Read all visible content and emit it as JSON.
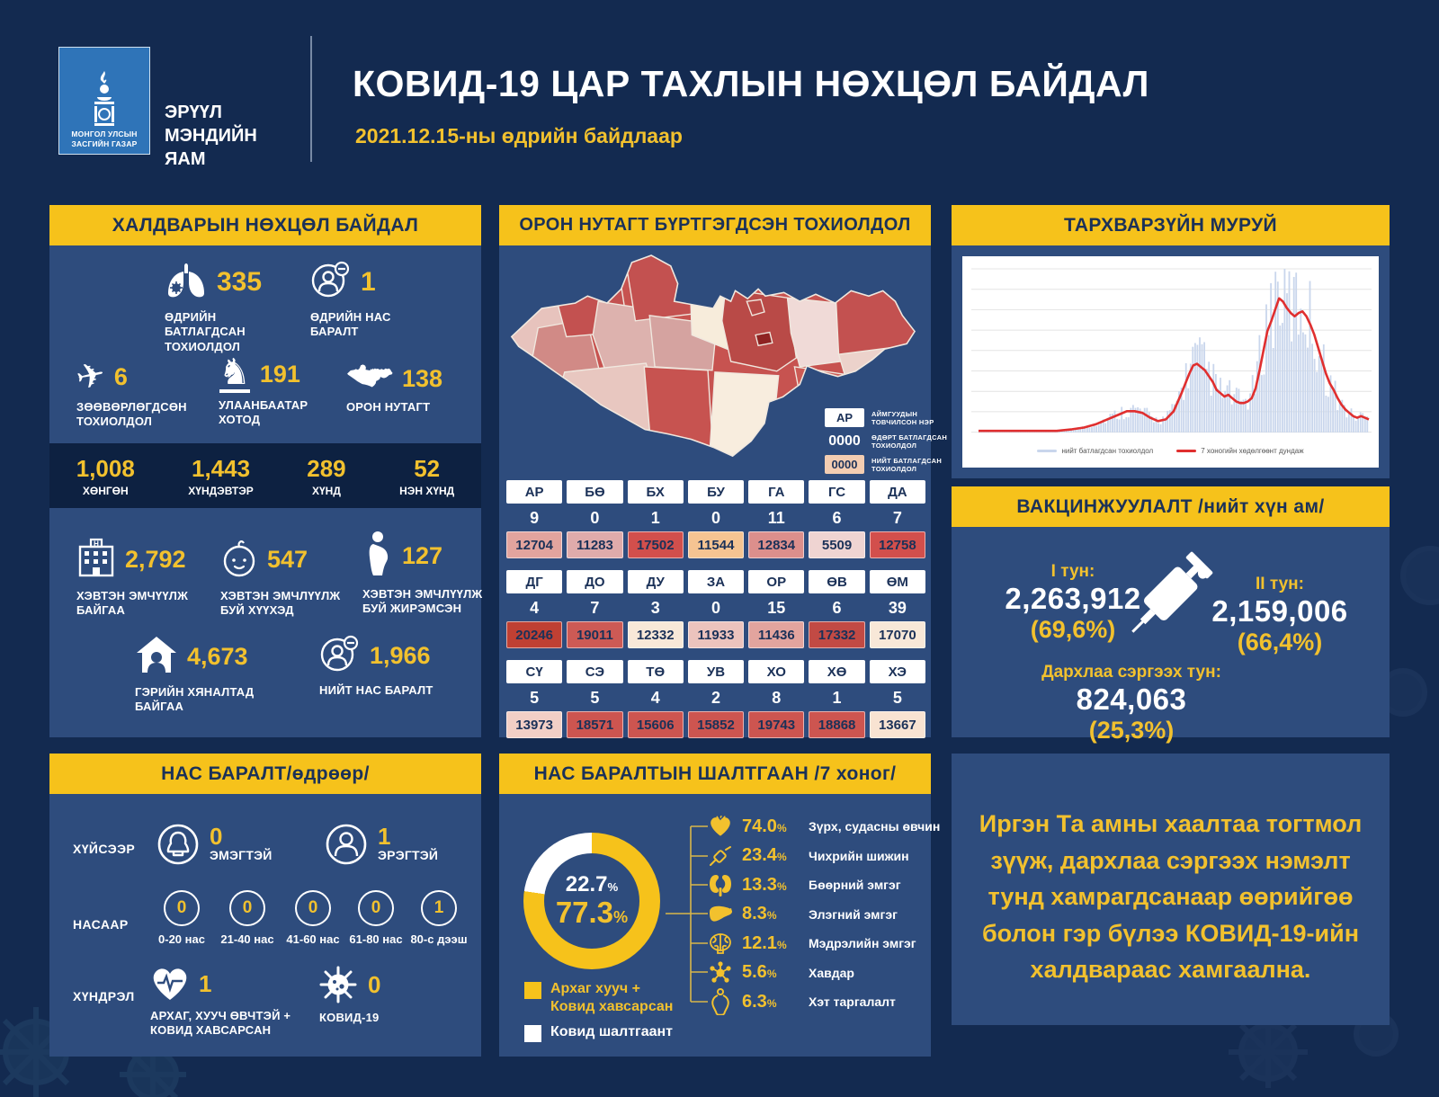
{
  "header": {
    "logo_caption": "МОНГОЛ УЛСЫН ЗАСГИЙН ГАЗАР",
    "ministry": "ЭРҮҮЛ МЭНДИЙН ЯАМ",
    "title": "КОВИД-19 ЦАР ТАХЛЫН НӨХЦӨЛ БАЙДАЛ",
    "date_line": "2021.12.15-ны өдрийн байдлаар"
  },
  "colors": {
    "background": "#132a50",
    "panel": "#2e4c7d",
    "accent_yellow": "#f6c21b",
    "number_yellow": "#f2c12e",
    "dark_band": "#0d2141",
    "red_line": "#e02f2f",
    "bar_blue": "#c9d6ec"
  },
  "infection_panel": {
    "title": "ХАЛДВАРЫН НӨХЦӨЛ БАЙДАЛ",
    "stats_top": [
      {
        "icon": "lungs-virus-icon",
        "value": "335",
        "label": "ӨДРИЙН БАТЛАГДСАН ТОХИОЛДОЛ"
      },
      {
        "icon": "person-death-icon",
        "value": "1",
        "label": "ӨДРИЙН НАС БАРАЛТ"
      },
      {
        "icon": "airplane-icon",
        "value": "6",
        "label": "ЗӨӨВӨРЛӨГДСӨН ТОХИОЛДОЛ"
      },
      {
        "icon": "statue-icon",
        "value": "191",
        "label": "УЛААНБААТАР ХОТОД"
      },
      {
        "icon": "mongolia-map-icon",
        "value": "138",
        "label": "ОРОН НУТАГТ"
      }
    ],
    "severity": [
      {
        "value": "1,008",
        "label": "ХӨНГӨН"
      },
      {
        "value": "1,443",
        "label": "ХҮНДЭВТЭР"
      },
      {
        "value": "289",
        "label": "ХҮНД"
      },
      {
        "value": "52",
        "label": "НЭН ХҮНД"
      }
    ],
    "stats_bottom": [
      {
        "icon": "hospital-icon",
        "value": "2,792",
        "label": "ХЭВТЭН ЭМЧҮҮЛЖ БАЙГАА"
      },
      {
        "icon": "baby-icon",
        "value": "547",
        "label": "ХЭВТЭН ЭМЧЛҮҮЛЖ БУЙ ХҮҮХЭД"
      },
      {
        "icon": "pregnant-icon",
        "value": "127",
        "label": "ХЭВТЭН ЭМЧЛҮҮЛЖ БУЙ ЖИРЭМСЭН"
      },
      {
        "icon": "home-icon",
        "value": "4,673",
        "label": "ГЭРИЙН ХЯНАЛТАД БАЙГАА"
      },
      {
        "icon": "person-death-icon",
        "value": "1,966",
        "label": "НИЙТ НАС БАРАЛТ"
      }
    ]
  },
  "regional_panel": {
    "title": "ОРОН НУТАГТ БҮРТГЭГДСЭН ТОХИОЛДОЛ",
    "legend": [
      {
        "sample": "АР",
        "style": "white",
        "label": "АЙМГУУДЫН ТОВЧИЛСОН НЭР"
      },
      {
        "sample": "0000",
        "style": "plain",
        "label": "ӨДӨРТ БАТЛАГДСАН ТОХИОЛДОЛ"
      },
      {
        "sample": "0000",
        "style": "pink",
        "label": "НИЙТ БАТЛАГДСАН ТОХИОЛДОЛ"
      }
    ],
    "rows": [
      [
        {
          "code": "АР",
          "daily": "9",
          "total": "12704",
          "color": "#e2a49e"
        },
        {
          "code": "БӨ",
          "daily": "0",
          "total": "11283",
          "color": "#dfabab"
        },
        {
          "code": "БХ",
          "daily": "1",
          "total": "17502",
          "color": "#d24f4c"
        },
        {
          "code": "БУ",
          "daily": "0",
          "total": "11544",
          "color": "#f5c492"
        },
        {
          "code": "ГА",
          "daily": "11",
          "total": "12834",
          "color": "#dc8f8c"
        },
        {
          "code": "ГС",
          "daily": "6",
          "total": "5509",
          "color": "#efd4d2"
        },
        {
          "code": "ДА",
          "daily": "7",
          "total": "12758",
          "color": "#d24f4c"
        }
      ],
      [
        {
          "code": "ДГ",
          "daily": "4",
          "total": "20246",
          "color": "#bf4033"
        },
        {
          "code": "ДО",
          "daily": "7",
          "total": "19011",
          "color": "#cd5a55"
        },
        {
          "code": "ДУ",
          "daily": "3",
          "total": "12332",
          "color": "#f8e8d8"
        },
        {
          "code": "ЗА",
          "daily": "0",
          "total": "11933",
          "color": "#ecc3bd"
        },
        {
          "code": "ОР",
          "daily": "15",
          "total": "11436",
          "color": "#e2a49e"
        },
        {
          "code": "ӨВ",
          "daily": "6",
          "total": "17332",
          "color": "#c24a44"
        },
        {
          "code": "ӨМ",
          "daily": "39",
          "total": "17070",
          "color": "#f8e8d8"
        }
      ],
      [
        {
          "code": "СҮ",
          "daily": "5",
          "total": "13973",
          "color": "#f2cfc6"
        },
        {
          "code": "СЭ",
          "daily": "5",
          "total": "18571",
          "color": "#cd5550"
        },
        {
          "code": "ТӨ",
          "daily": "4",
          "total": "15606",
          "color": "#cd5550"
        },
        {
          "code": "УВ",
          "daily": "2",
          "total": "15852",
          "color": "#cd5550"
        },
        {
          "code": "ХО",
          "daily": "8",
          "total": "19743",
          "color": "#cd5550"
        },
        {
          "code": "ХӨ",
          "daily": "1",
          "total": "18868",
          "color": "#cd5550"
        },
        {
          "code": "ХЭ",
          "daily": "5",
          "total": "13667",
          "color": "#f8e3d2"
        }
      ]
    ],
    "map_fills": [
      "#c75350",
      "#e7c3bd",
      "#d18a86",
      "#c35150",
      "#ddb2ae",
      "#e8c7c0",
      "#c35150",
      "#d5a3a0",
      "#c75350",
      "#f7ecdb",
      "#f8edde",
      "#b94a47",
      "#f0dad7",
      "#c35150",
      "#ecd2cb",
      "#cc5b55",
      "#b94a47",
      "#8e2322"
    ]
  },
  "curve_panel": {
    "title": "ТАРХВАРЗҮЙН МУРУЙ"
  },
  "vaccination_panel": {
    "title": "ВАКЦИНЖУУЛАЛТ /нийт хүн ам/",
    "dose1_label": "I тун:",
    "dose1_value": "2,263,912",
    "dose1_pct": "(69,6%)",
    "dose2_label": "II тун:",
    "dose2_value": "2,159,006",
    "dose2_pct": "(66,4%)",
    "booster_label": "Дархлаа сэргээх тун:",
    "booster_value": "824,063",
    "booster_pct": "(25,3%)"
  },
  "deaths_panel": {
    "title": "НАС БАРАЛТ/өдрөөр/",
    "by_sex_label": "ХҮЙСЭЭР",
    "female": {
      "value": "0",
      "label": "ЭМЭГТЭЙ"
    },
    "male": {
      "value": "1",
      "label": "ЭРЭГТЭЙ"
    },
    "by_age_label": "НАСААР",
    "by_age": [
      {
        "value": "0",
        "label": "0-20 нас"
      },
      {
        "value": "0",
        "label": "21-40 нас"
      },
      {
        "value": "0",
        "label": "41-60 нас"
      },
      {
        "value": "0",
        "label": "61-80 нас"
      },
      {
        "value": "1",
        "label": "80-с дээш"
      }
    ],
    "complication_label": "ХҮНДРЭЛ",
    "comp1": {
      "value": "1",
      "label": "АРХАГ, ХУУЧ ӨВЧТЭЙ + КОВИД ХАВСАРСАН"
    },
    "comp2": {
      "value": "0",
      "label": "КОВИД-19"
    }
  },
  "causes_panel": {
    "title": "НАС БАРАЛТЫН ШАЛТГААН /7 хоног/",
    "center_pct_top": "22.7",
    "center_pct_bottom": "77.3",
    "legend": [
      {
        "label": "Архаг хууч + Ковид хавсарсан",
        "color": "#f6c21b"
      },
      {
        "label": "Ковид шалтгаант",
        "color": "#ffffff"
      }
    ],
    "items": [
      {
        "icon": "heart-icon",
        "value": "74.0",
        "label": "Зүрх, судасны өвчин"
      },
      {
        "icon": "diabetes-icon",
        "value": "23.4",
        "label": "Чихрийн шижин"
      },
      {
        "icon": "kidney-icon",
        "value": "13.3",
        "label": "Бөөрний эмгэг"
      },
      {
        "icon": "liver-icon",
        "value": "8.3",
        "label": "Элэгний эмгэг"
      },
      {
        "icon": "brain-icon",
        "value": "12.1",
        "label": "Мэдрэлийн эмгэг"
      },
      {
        "icon": "cancer-icon",
        "value": "5.6",
        "label": "Хавдар"
      },
      {
        "icon": "obesity-icon",
        "value": "6.3",
        "label": "Хэт таргалалт"
      }
    ]
  },
  "message_panel": {
    "text": "Иргэн Та амны хаалтаа тогтмол зүүж, дархлаа сэргээх нэмэлт тунд хамрагдсанаар өөрийгөө болон гэр бүлээ КОВИД-19-ийн халдвараас хамгаална."
  },
  "chart_data": [
    {
      "type": "line",
      "title": "ТАРХВАРЗҮЙН МУРУЙ",
      "xlabel": "",
      "ylabel": "",
      "grid": true,
      "legend_position": "bottom",
      "series": [
        {
          "name": "нийт батлагдсан тохиолдол",
          "style": "bars",
          "color": "#c9d6ec"
        },
        {
          "name": "7 хоногийн хөдөлгөөнт дундаж",
          "style": "line",
          "color": "#e02f2f"
        }
      ],
      "points_pct": [
        [
          0,
          1
        ],
        [
          4,
          1
        ],
        [
          8,
          1
        ],
        [
          12,
          1
        ],
        [
          16,
          1
        ],
        [
          20,
          1
        ],
        [
          24,
          2
        ],
        [
          27,
          3
        ],
        [
          30,
          5
        ],
        [
          33,
          8
        ],
        [
          36,
          11
        ],
        [
          38,
          13
        ],
        [
          40,
          13
        ],
        [
          42,
          12
        ],
        [
          44,
          9
        ],
        [
          46,
          7
        ],
        [
          48,
          8
        ],
        [
          50,
          13
        ],
        [
          52,
          24
        ],
        [
          54,
          36
        ],
        [
          55,
          41
        ],
        [
          56,
          42
        ],
        [
          57,
          40
        ],
        [
          58,
          38
        ],
        [
          60,
          31
        ],
        [
          61,
          26
        ],
        [
          62,
          24
        ],
        [
          63,
          22
        ],
        [
          64,
          23
        ],
        [
          65,
          21
        ],
        [
          66,
          19
        ],
        [
          67,
          18
        ],
        [
          68,
          18
        ],
        [
          69,
          19
        ],
        [
          70,
          21
        ],
        [
          71,
          27
        ],
        [
          72,
          38
        ],
        [
          73,
          50
        ],
        [
          74,
          62
        ],
        [
          75,
          68
        ],
        [
          76,
          75
        ],
        [
          77,
          82
        ],
        [
          78,
          80
        ],
        [
          79,
          76
        ],
        [
          80,
          73
        ],
        [
          81,
          71
        ],
        [
          82,
          73
        ],
        [
          83,
          74
        ],
        [
          84,
          71
        ],
        [
          85,
          66
        ],
        [
          86,
          60
        ],
        [
          87,
          52
        ],
        [
          88,
          44
        ],
        [
          89,
          36
        ],
        [
          90,
          30
        ],
        [
          91,
          26
        ],
        [
          92,
          21
        ],
        [
          93,
          17
        ],
        [
          94,
          14
        ],
        [
          95,
          12
        ],
        [
          96,
          10
        ],
        [
          97,
          9
        ],
        [
          98,
          10
        ],
        [
          99,
          9
        ],
        [
          100,
          8
        ]
      ]
    },
    {
      "type": "pie",
      "title": "НАС БАРАЛТЫН ШАЛТГААН /7 хоног/",
      "slices": [
        {
          "label": "Архаг хууч + Ковид хавсарсан",
          "value": 77.3,
          "color": "#f6c21b"
        },
        {
          "label": "Ковид шалтгаант",
          "value": 22.7,
          "color": "#ffffff"
        }
      ]
    }
  ]
}
